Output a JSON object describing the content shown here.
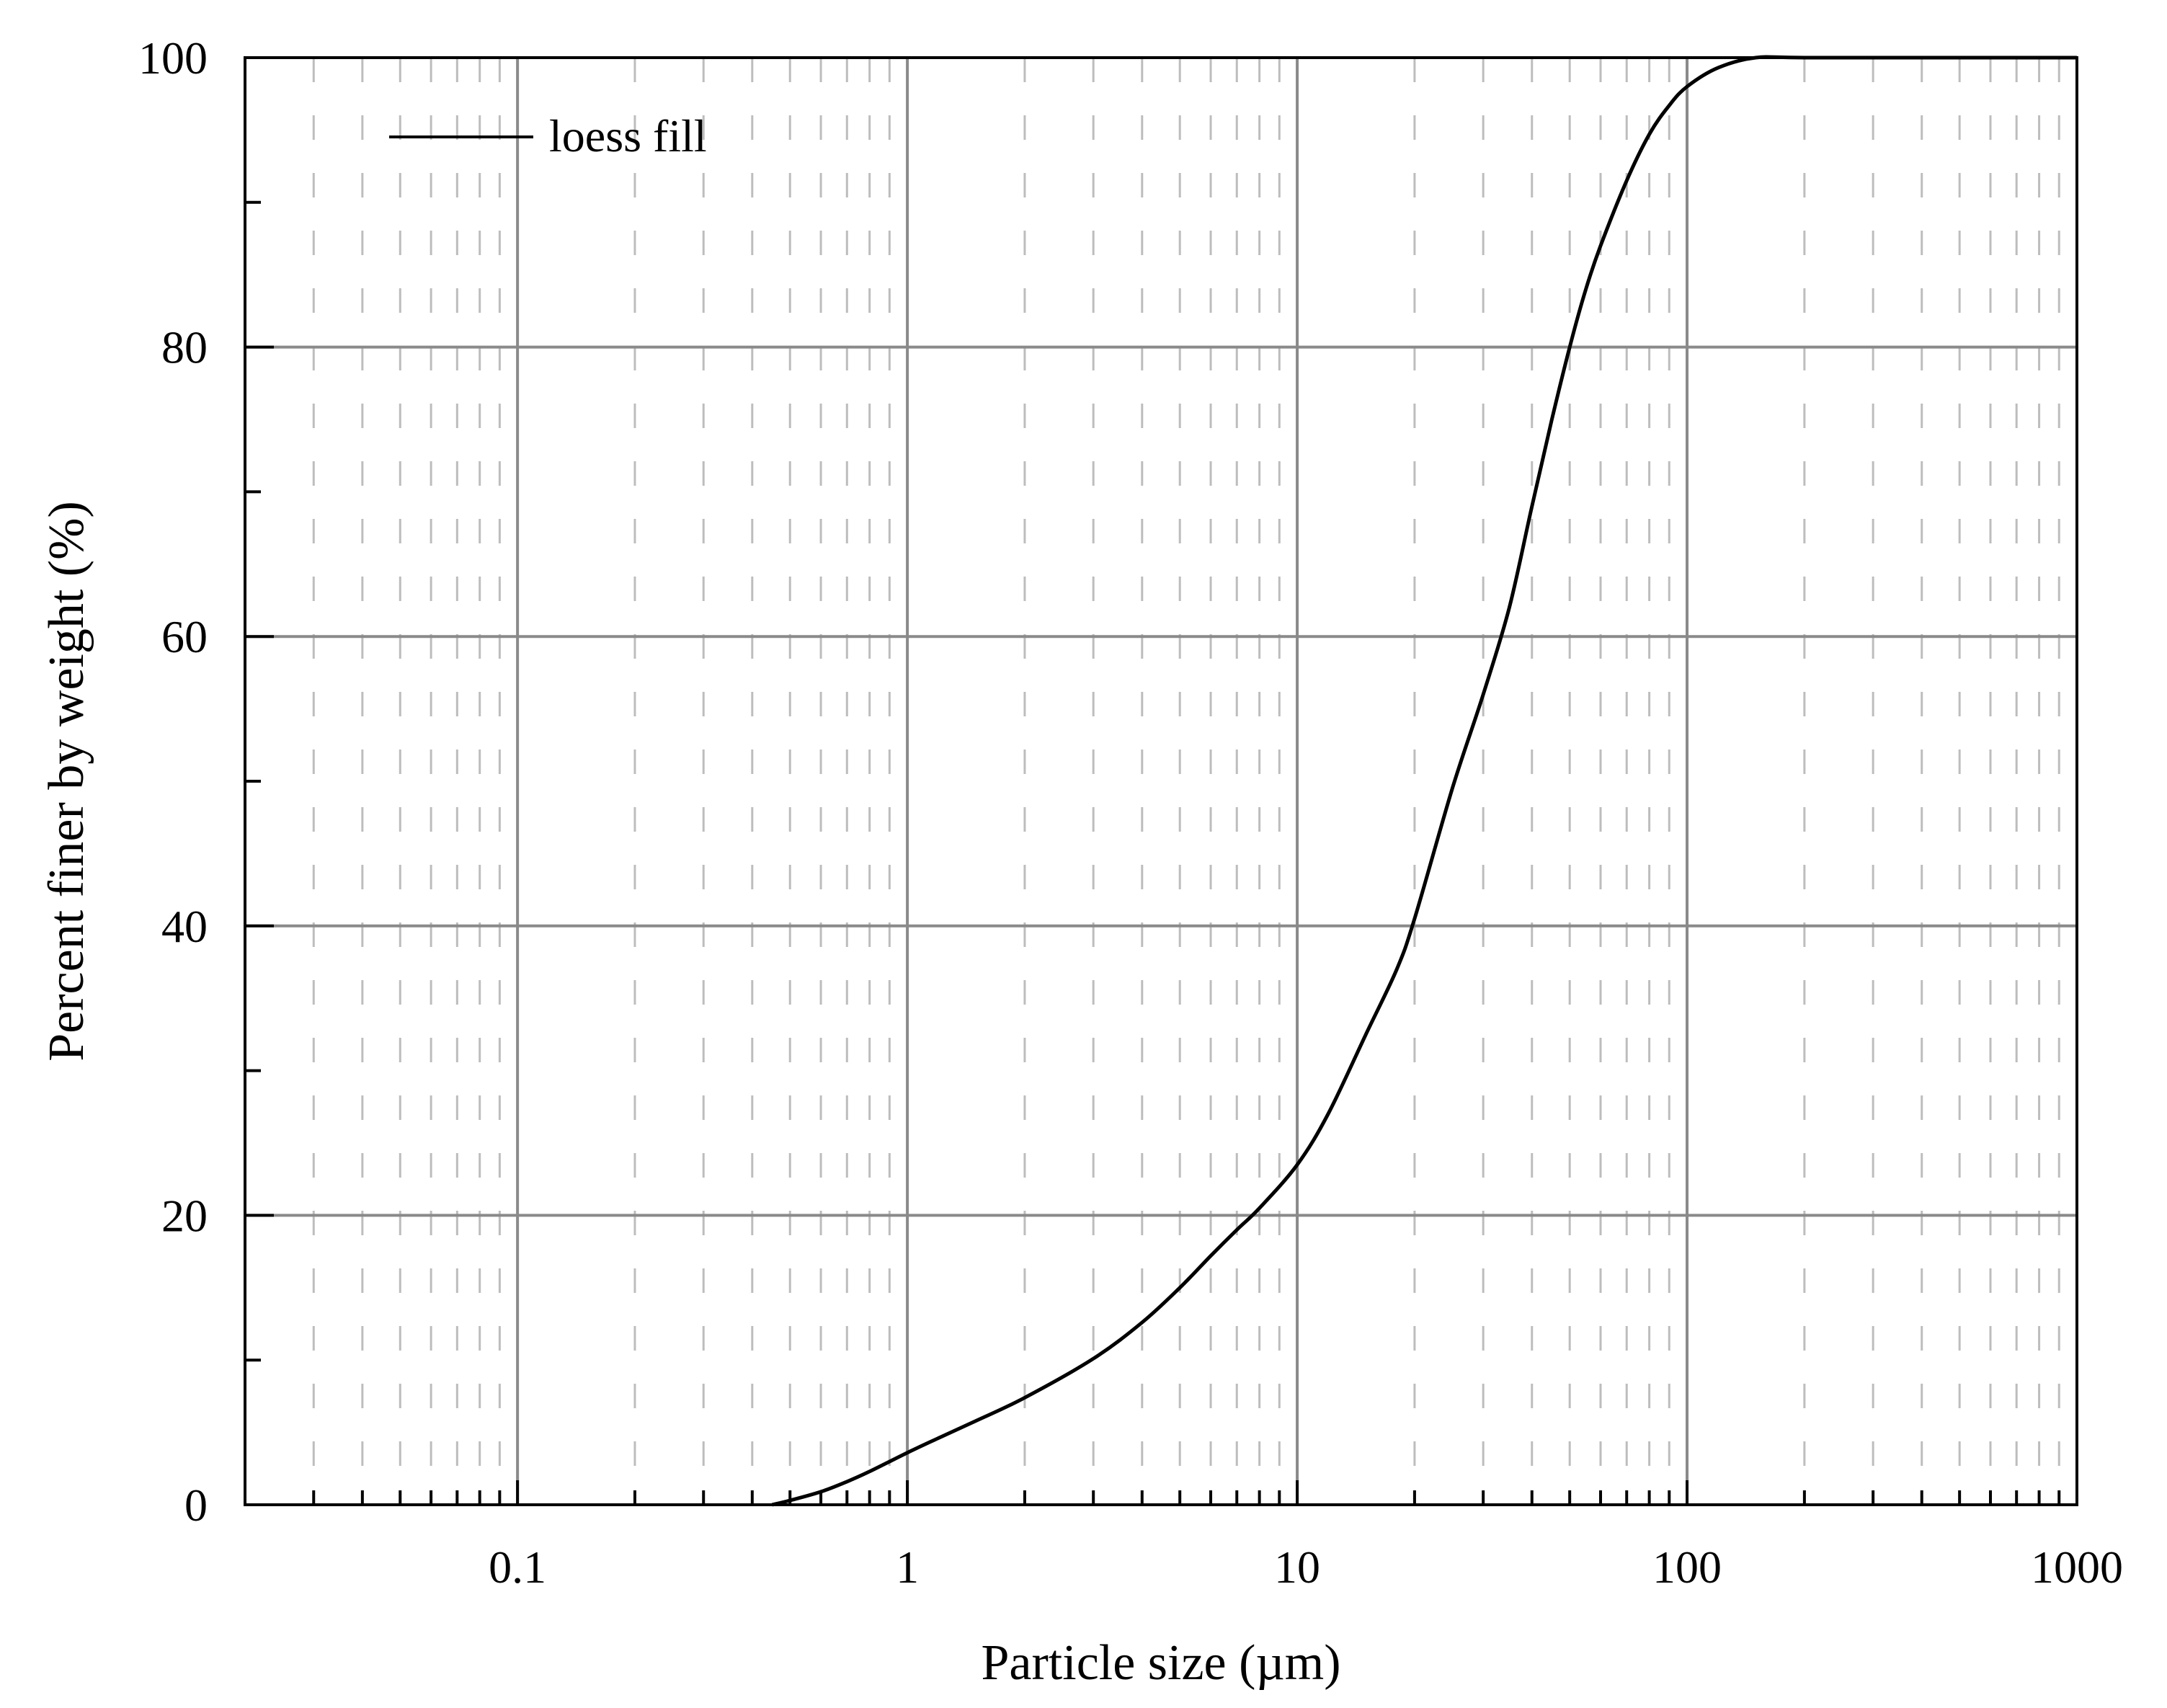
{
  "chart_data": {
    "type": "line",
    "xlabel": "Particle size (µm)",
    "ylabel": "Percent finer by weight (%)",
    "x_scale": "log",
    "xlim": [
      0.02,
      1000
    ],
    "ylim": [
      0,
      100
    ],
    "x_ticks": [
      {
        "value": 0.1,
        "label": "0.1"
      },
      {
        "value": 1,
        "label": "1"
      },
      {
        "value": 10,
        "label": "10"
      },
      {
        "value": 100,
        "label": "100"
      },
      {
        "value": 1000,
        "label": "1000"
      }
    ],
    "y_ticks": [
      {
        "value": 0,
        "label": "0"
      },
      {
        "value": 20,
        "label": "20"
      },
      {
        "value": 40,
        "label": "40"
      },
      {
        "value": 60,
        "label": "60"
      },
      {
        "value": 80,
        "label": "80"
      },
      {
        "value": 100,
        "label": "100"
      }
    ],
    "grid": true,
    "legend": {
      "position": "top-left"
    },
    "series": [
      {
        "name": "loess fill",
        "color": "#000000",
        "x": [
          0.45,
          0.5,
          0.6,
          0.7,
          0.8,
          1.0,
          1.2,
          1.5,
          2.0,
          3.0,
          4.0,
          5.0,
          6.0,
          7.0,
          8.0,
          10.0,
          12.0,
          15.0,
          18.0,
          20.0,
          25.0,
          30.0,
          35.0,
          40.0,
          45.0,
          50.0,
          55.0,
          60.0,
          70.0,
          80.0,
          90.0,
          100.0,
          120.0,
          150.0,
          200.0,
          500.0,
          1000.0
        ],
        "y": [
          0.0,
          0.3,
          0.9,
          1.6,
          2.3,
          3.6,
          4.6,
          5.8,
          7.4,
          10.1,
          12.6,
          15.0,
          17.2,
          19.0,
          20.5,
          23.5,
          27.0,
          32.5,
          37.0,
          40.5,
          49.5,
          56.0,
          62.0,
          69.0,
          75.0,
          80.0,
          84.0,
          87.0,
          91.5,
          94.7,
          96.7,
          98.0,
          99.3,
          100.0,
          100.0,
          100.0,
          100.0
        ]
      }
    ]
  }
}
